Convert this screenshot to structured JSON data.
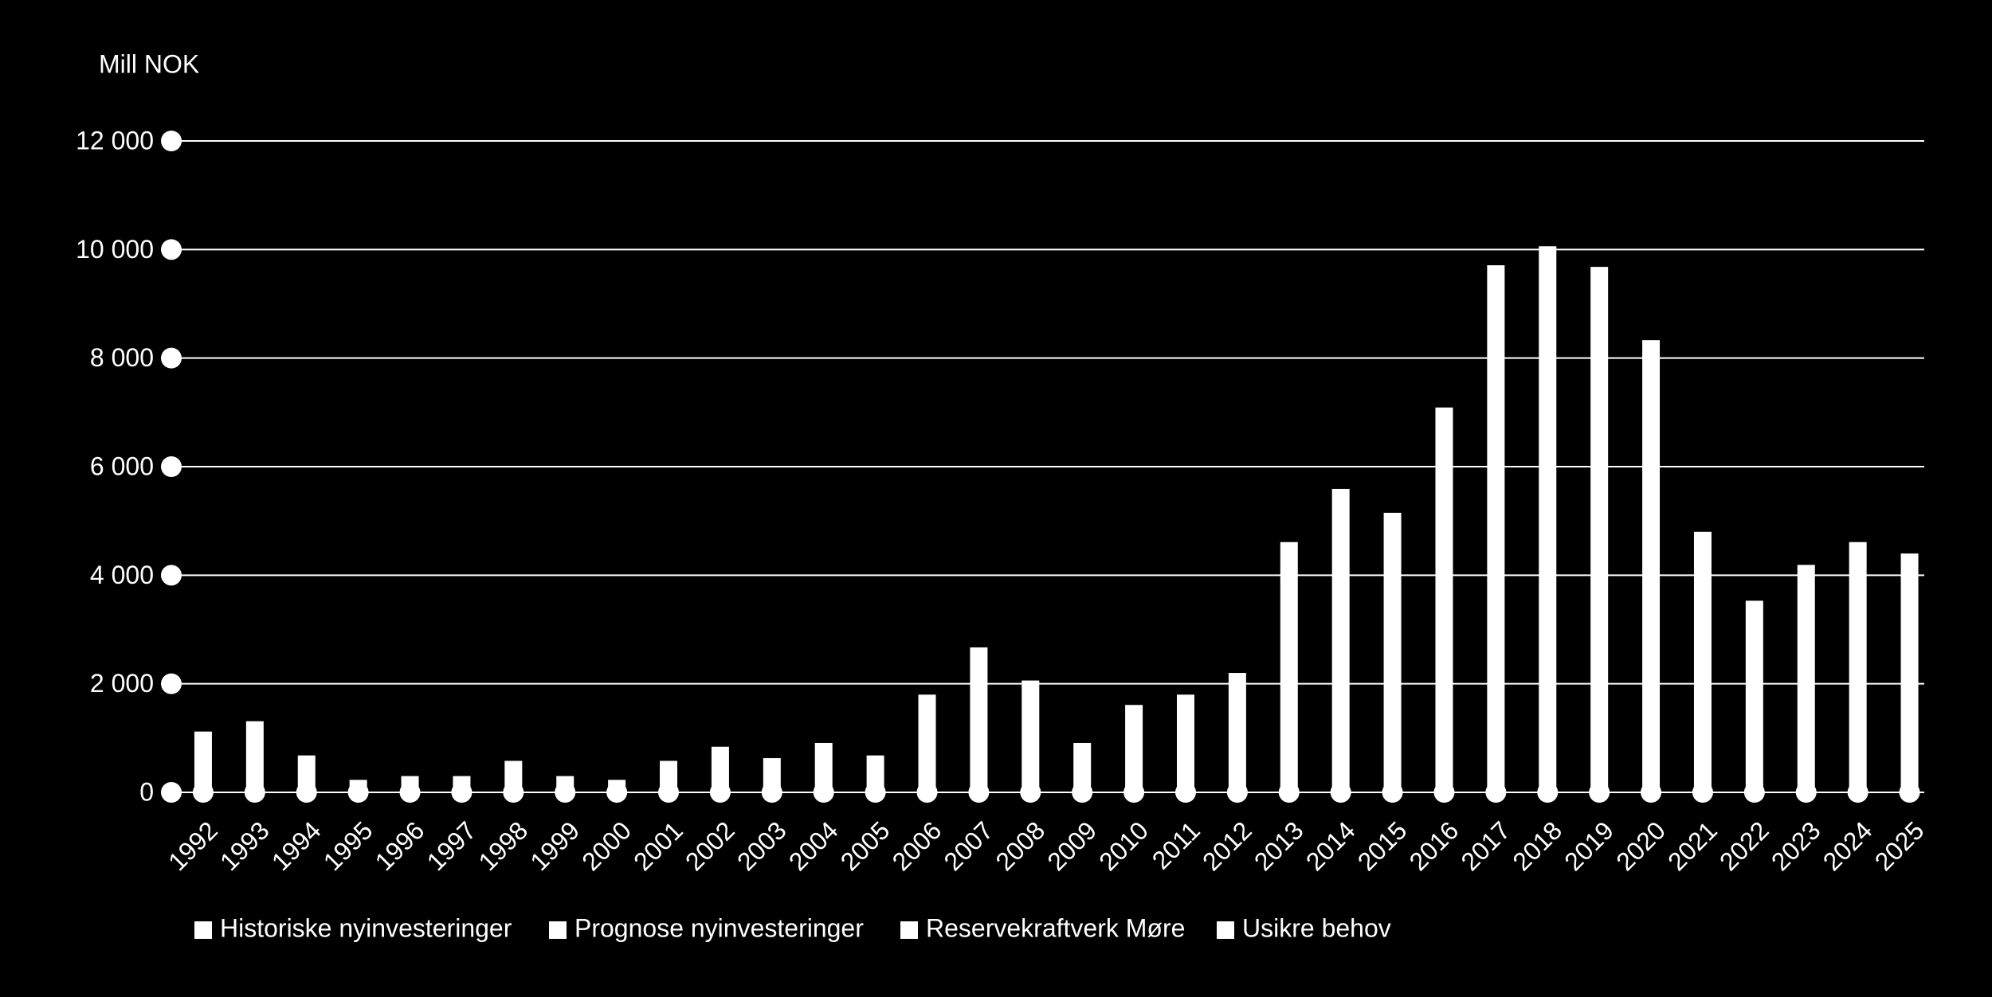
{
  "chart_data": {
    "type": "stacked-bar",
    "y_label": "Mill NOK",
    "categories": [
      "1992",
      "1993",
      "1994",
      "1995",
      "1996",
      "1997",
      "1998",
      "1999",
      "2000",
      "2001",
      "2002",
      "2003",
      "2004",
      "2005",
      "2006",
      "2007",
      "2008",
      "2009",
      "2010",
      "2011",
      "2012",
      "2013",
      "2014",
      "2015",
      "2016",
      "2017",
      "2018",
      "2019",
      "2020",
      "2021",
      "2022",
      "2023",
      "2024",
      "2025"
    ],
    "series": [
      {
        "name": "Historiske nyinvesteringer",
        "color": "#ffffff",
        "values": [
          1120,
          1310,
          680,
          230,
          300,
          300,
          580,
          300,
          230,
          580,
          840,
          630,
          910,
          680,
          1800,
          2670,
          2060,
          910,
          1610,
          1800,
          2200,
          null,
          null,
          null,
          null,
          null,
          null,
          null,
          null,
          null,
          null,
          null,
          null,
          null
        ]
      },
      {
        "name": "Prognose nyinvesteringer",
        "color": "#ffffff",
        "values": [
          null,
          null,
          null,
          null,
          null,
          null,
          null,
          null,
          null,
          null,
          null,
          null,
          null,
          null,
          null,
          null,
          null,
          null,
          null,
          null,
          null,
          4610,
          5590,
          5150,
          7090,
          9710,
          10060,
          9680,
          8330,
          4800,
          3530,
          4190,
          4610,
          4400
        ]
      },
      {
        "name": "Reservekraftverk Møre",
        "color": "#ffffff",
        "values": [
          null,
          null,
          null,
          null,
          null,
          null,
          null,
          null,
          null,
          null,
          null,
          null,
          null,
          null,
          null,
          null,
          null,
          null,
          null,
          null,
          null,
          null,
          null,
          null,
          null,
          null,
          null,
          null,
          null,
          null,
          null,
          null,
          null,
          null
        ]
      },
      {
        "name": "Usikre behov",
        "color": "#ffffff",
        "values": [
          null,
          null,
          null,
          null,
          null,
          null,
          null,
          null,
          null,
          null,
          null,
          null,
          null,
          null,
          null,
          null,
          null,
          null,
          null,
          null,
          null,
          null,
          null,
          null,
          null,
          null,
          null,
          null,
          null,
          null,
          null,
          null,
          null,
          null
        ]
      }
    ],
    "ylim": [
      0,
      12000
    ],
    "yticks": [
      0,
      {
        "value": 2000,
        "label": "2 000"
      },
      {
        "value": 4000,
        "label": "4 000"
      },
      {
        "value": 6000,
        "label": "6 000"
      },
      {
        "value": 8000,
        "label": "8 000"
      },
      {
        "value": 10000,
        "label": "10 000"
      },
      {
        "value": 12000,
        "label": "12 000"
      }
    ],
    "grid": true
  }
}
